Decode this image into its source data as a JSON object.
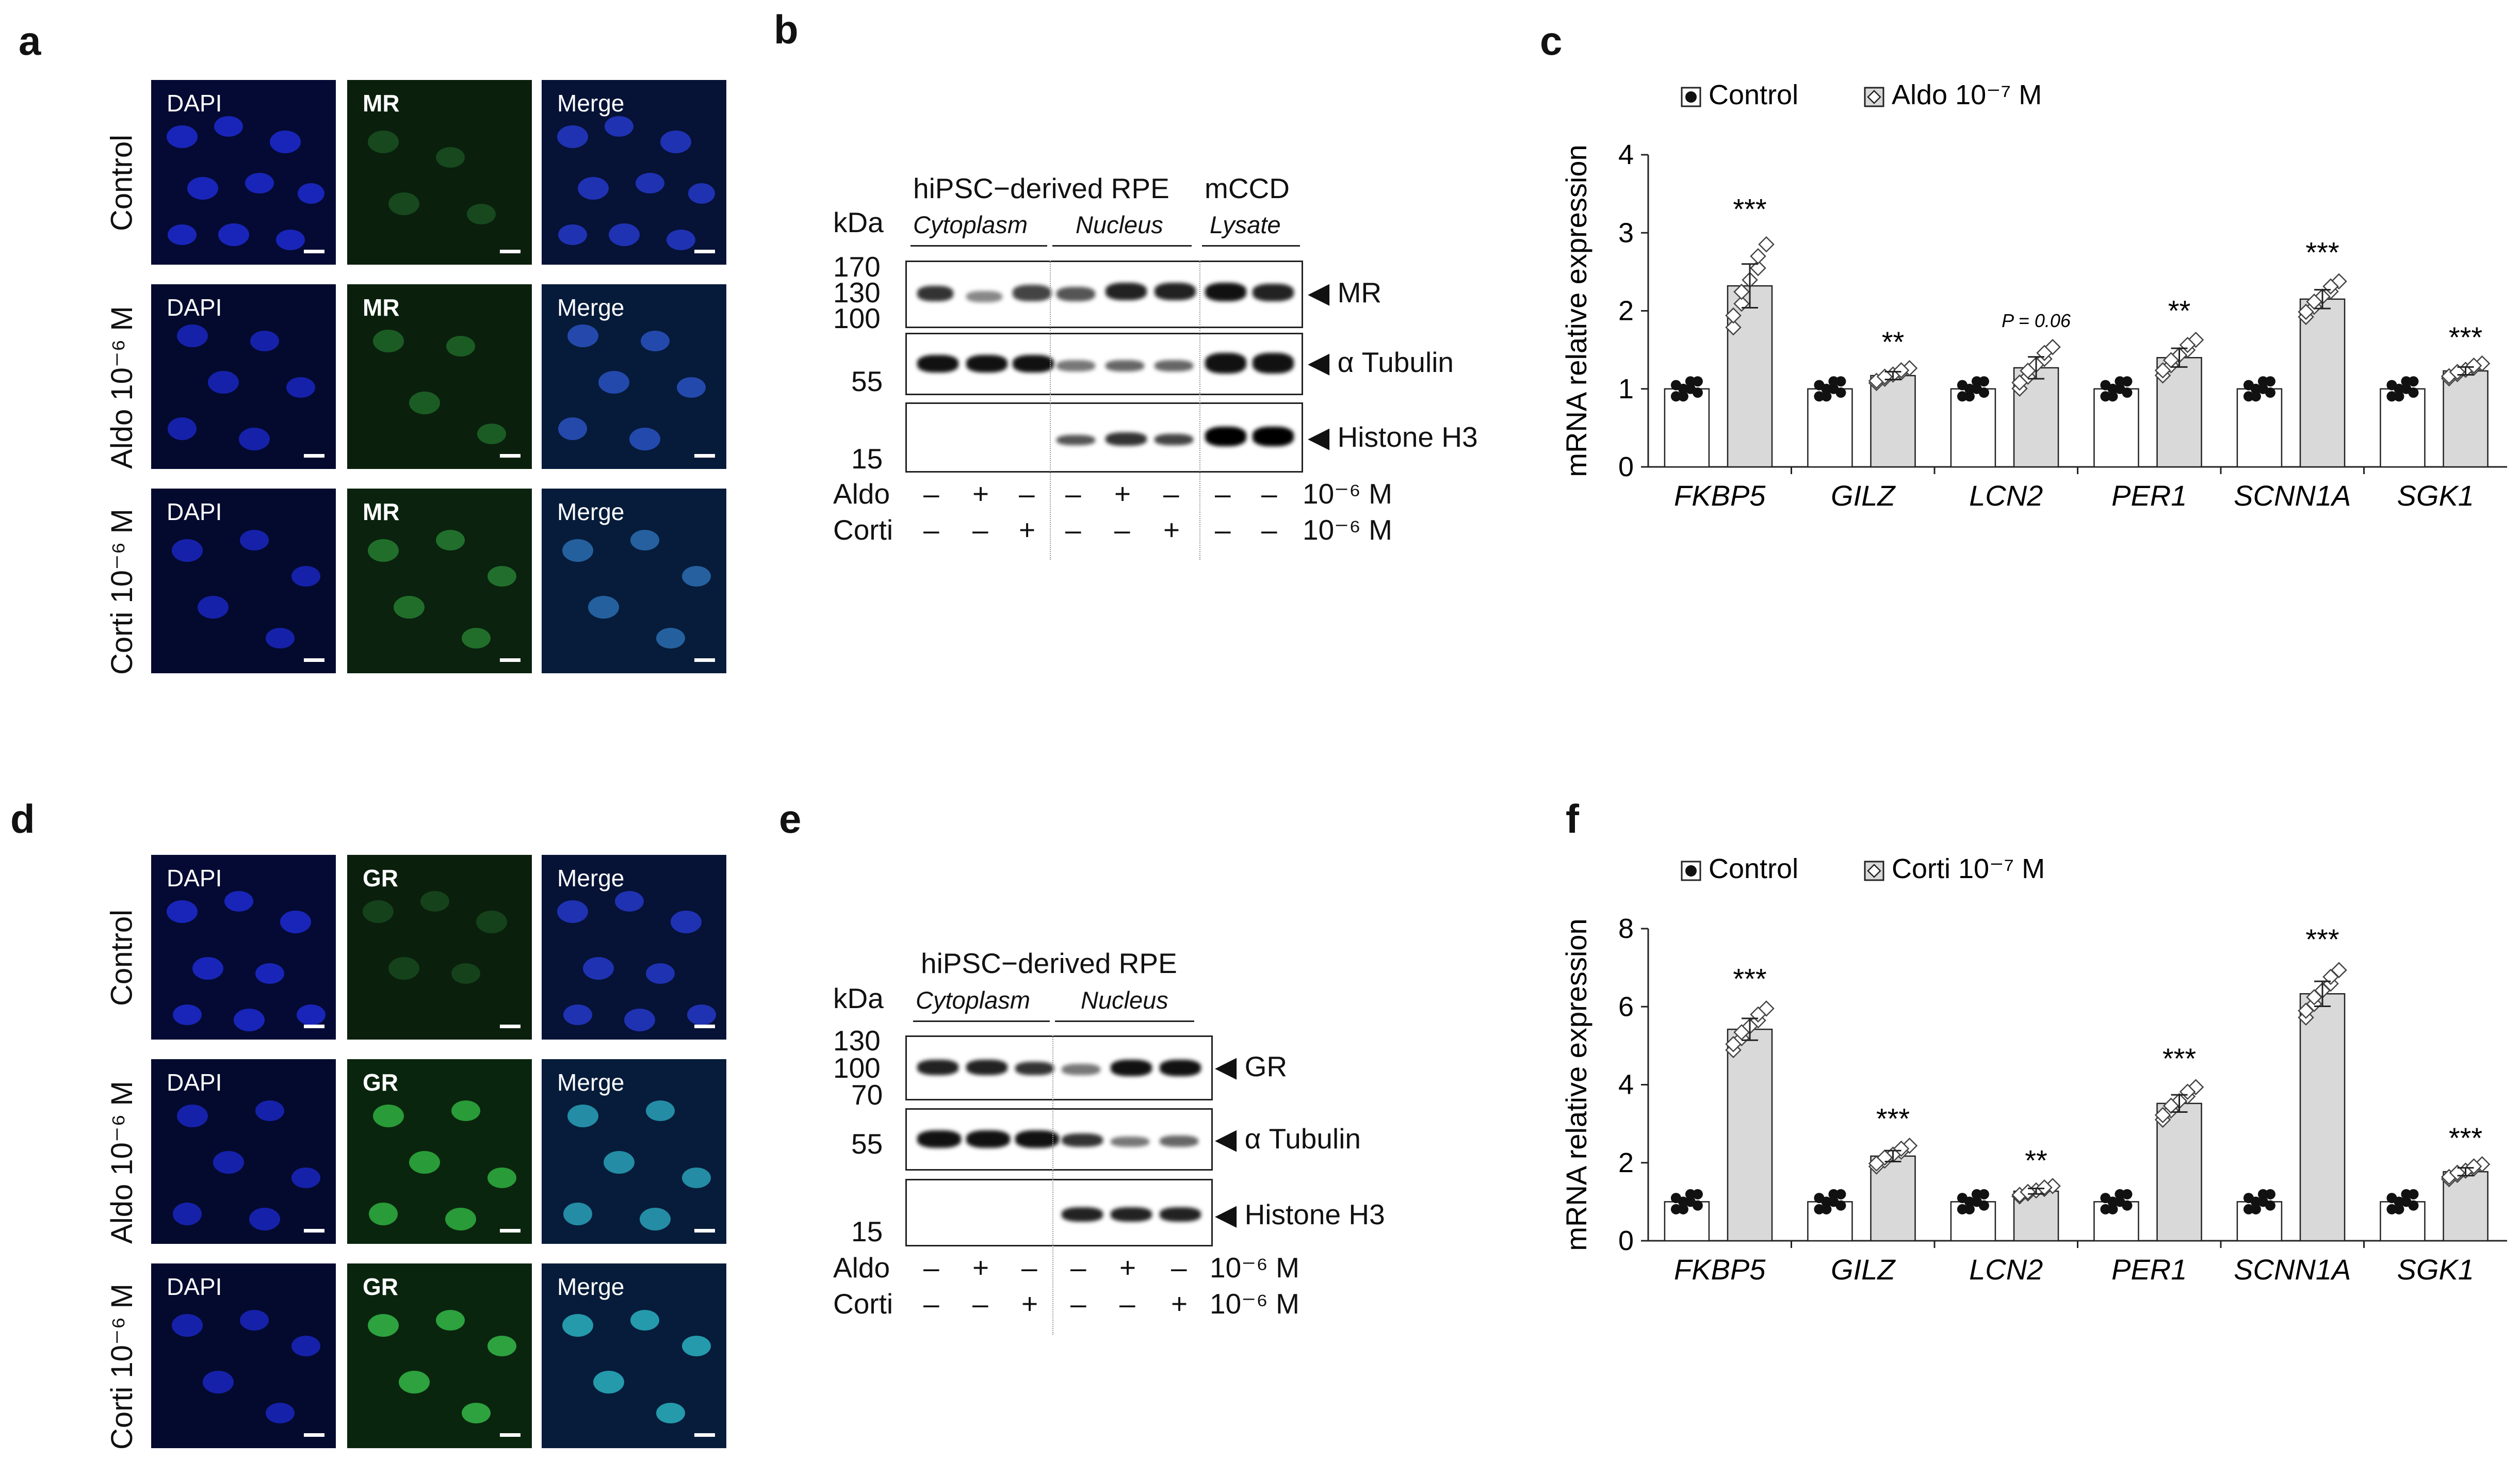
{
  "letters": {
    "a": "a",
    "b": "b",
    "c": "c",
    "d": "d",
    "e": "e",
    "f": "f"
  },
  "micro": {
    "channels": [
      "DAPI",
      "Merge"
    ],
    "top_marker": "MR",
    "bottom_marker": "GR",
    "rows": [
      "Control",
      "Aldo 10⁻⁶ M",
      "Corti 10⁻⁶ M"
    ]
  },
  "blot_b": {
    "group1": "hiPSC−derived RPE",
    "group2": "mCCD",
    "sub1": "Cytoplasm",
    "sub2": "Nucleus",
    "sub3": "Lysate",
    "kda": "kDa",
    "markers": [
      "170",
      "130",
      "100",
      "55",
      "15"
    ],
    "bands": [
      "MR",
      "α Tubulin",
      "Histone H3"
    ],
    "row1_label": "Aldo",
    "row2_label": "Corti",
    "row1_signs": [
      "–",
      "+",
      "–",
      "–",
      "+",
      "–",
      "–",
      "–"
    ],
    "row2_signs": [
      "–",
      "–",
      "+",
      "–",
      "–",
      "+",
      "–",
      "–"
    ],
    "conc": "10⁻⁶ M"
  },
  "blot_e": {
    "group1": "hiPSC−derived RPE",
    "sub1": "Cytoplasm",
    "sub2": "Nucleus",
    "kda": "kDa",
    "markers": [
      "130",
      "100",
      "70",
      "55",
      "15"
    ],
    "bands": [
      "GR",
      "α Tubulin",
      "Histone H3"
    ],
    "row1_label": "Aldo",
    "row2_label": "Corti",
    "row1_signs": [
      "–",
      "+",
      "–",
      "–",
      "+",
      "–"
    ],
    "row2_signs": [
      "–",
      "–",
      "+",
      "–",
      "–",
      "+"
    ],
    "conc": "10⁻⁶ M"
  },
  "chart_data": [
    {
      "type": "bar",
      "ylabel": "mRNA  relative expression",
      "ylim": [
        0,
        4
      ],
      "yticks": [
        "0",
        "1",
        "2",
        "3",
        "4"
      ],
      "categories": [
        "FKBP5",
        "GILZ",
        "LCN2",
        "PER1",
        "SCNN1A",
        "SGK1"
      ],
      "series": [
        {
          "name": "Control",
          "values": [
            1.0,
            1.0,
            1.0,
            1.0,
            1.0,
            1.0
          ]
        },
        {
          "name": "Aldo 10⁻⁷ M",
          "values": [
            2.32,
            1.17,
            1.27,
            1.4,
            2.15,
            1.23
          ]
        }
      ],
      "errors": [
        0.28,
        0.05,
        0.14,
        0.12,
        0.12,
        0.05
      ],
      "significance": [
        "***",
        "**",
        "P = 0.06",
        "**",
        "***",
        "***"
      ],
      "legend_position": "top-left",
      "colors": {
        "control": "#ffffff",
        "treated": "#d9d9d9"
      }
    },
    {
      "type": "bar",
      "ylabel": "mRNA  relative expression",
      "ylim": [
        0,
        8
      ],
      "yticks": [
        "0",
        "2",
        "4",
        "6",
        "8"
      ],
      "categories": [
        "FKBP5",
        "GILZ",
        "LCN2",
        "PER1",
        "SCNN1A",
        "SGK1"
      ],
      "series": [
        {
          "name": "Control",
          "values": [
            1.0,
            1.0,
            1.0,
            1.0,
            1.0,
            1.0
          ]
        },
        {
          "name": "Corti 10⁻⁷ M",
          "values": [
            5.42,
            2.17,
            1.27,
            3.52,
            6.33,
            1.77
          ]
        }
      ],
      "errors": [
        0.28,
        0.14,
        0.07,
        0.22,
        0.32,
        0.1
      ],
      "significance": [
        "***",
        "***",
        "**",
        "***",
        "***",
        "***"
      ],
      "legend_position": "top-left",
      "colors": {
        "control": "#ffffff",
        "treated": "#d9d9d9"
      }
    }
  ]
}
